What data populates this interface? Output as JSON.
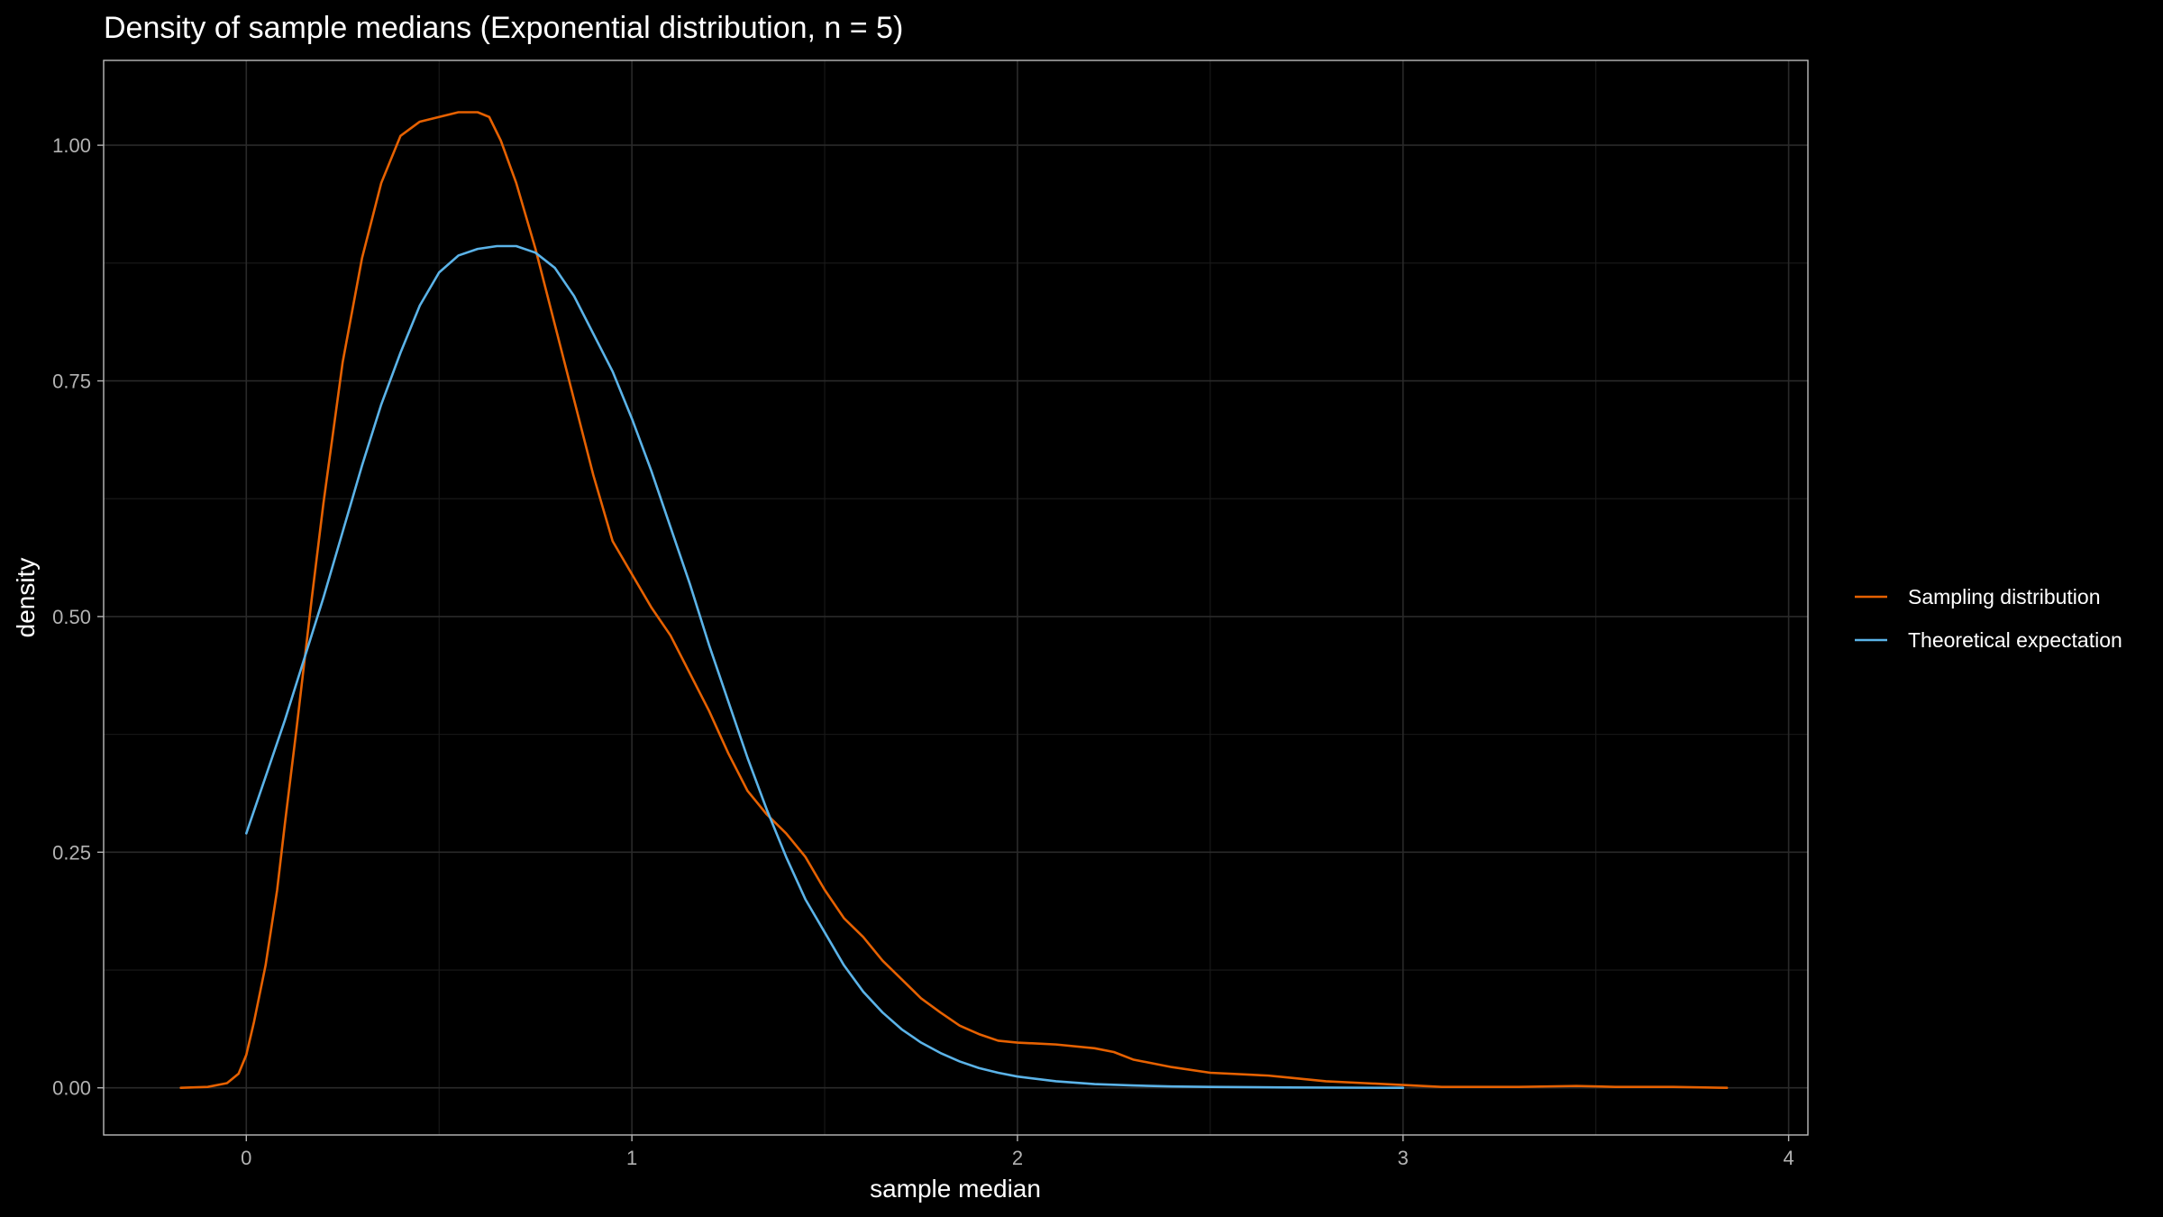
{
  "chart_data": {
    "type": "line",
    "title": "Density of sample medians (Exponential distribution, n = 5)",
    "xlabel": "sample median",
    "ylabel": "density",
    "xlim": [
      -0.37,
      4.05
    ],
    "ylim": [
      -0.05,
      1.09
    ],
    "xticks": [
      0,
      1,
      2,
      3,
      4
    ],
    "xtick_labels": [
      "0",
      "1",
      "2",
      "3",
      "4"
    ],
    "yticks": [
      0.0,
      0.25,
      0.5,
      0.75,
      1.0
    ],
    "ytick_labels": [
      "0.00",
      "0.25",
      "0.50",
      "0.75",
      "1.00"
    ],
    "x_minor": [
      0.5,
      1.5,
      2.5,
      3.5
    ],
    "y_minor": [
      0.125,
      0.375,
      0.625,
      0.875
    ],
    "grid": true,
    "legend_position": "right",
    "series": [
      {
        "name": "Sampling distribution",
        "color": "#e66101",
        "points": [
          [
            -0.17,
            0.0
          ],
          [
            -0.1,
            0.001
          ],
          [
            -0.05,
            0.005
          ],
          [
            -0.02,
            0.015
          ],
          [
            0.0,
            0.035
          ],
          [
            0.02,
            0.07
          ],
          [
            0.05,
            0.13
          ],
          [
            0.08,
            0.21
          ],
          [
            0.1,
            0.28
          ],
          [
            0.13,
            0.38
          ],
          [
            0.17,
            0.52
          ],
          [
            0.2,
            0.62
          ],
          [
            0.25,
            0.77
          ],
          [
            0.3,
            0.88
          ],
          [
            0.35,
            0.96
          ],
          [
            0.4,
            1.01
          ],
          [
            0.45,
            1.025
          ],
          [
            0.5,
            1.03
          ],
          [
            0.55,
            1.035
          ],
          [
            0.6,
            1.035
          ],
          [
            0.63,
            1.03
          ],
          [
            0.66,
            1.005
          ],
          [
            0.7,
            0.96
          ],
          [
            0.75,
            0.89
          ],
          [
            0.8,
            0.81
          ],
          [
            0.85,
            0.73
          ],
          [
            0.9,
            0.65
          ],
          [
            0.95,
            0.58
          ],
          [
            1.0,
            0.545
          ],
          [
            1.05,
            0.51
          ],
          [
            1.1,
            0.48
          ],
          [
            1.15,
            0.44
          ],
          [
            1.2,
            0.4
          ],
          [
            1.25,
            0.355
          ],
          [
            1.3,
            0.315
          ],
          [
            1.35,
            0.29
          ],
          [
            1.4,
            0.27
          ],
          [
            1.45,
            0.245
          ],
          [
            1.5,
            0.21
          ],
          [
            1.55,
            0.18
          ],
          [
            1.6,
            0.16
          ],
          [
            1.65,
            0.135
          ],
          [
            1.7,
            0.115
          ],
          [
            1.75,
            0.095
          ],
          [
            1.8,
            0.08
          ],
          [
            1.85,
            0.066
          ],
          [
            1.9,
            0.057
          ],
          [
            1.95,
            0.05
          ],
          [
            2.0,
            0.048
          ],
          [
            2.1,
            0.046
          ],
          [
            2.2,
            0.042
          ],
          [
            2.25,
            0.038
          ],
          [
            2.3,
            0.03
          ],
          [
            2.4,
            0.022
          ],
          [
            2.5,
            0.016
          ],
          [
            2.6,
            0.014
          ],
          [
            2.65,
            0.013
          ],
          [
            2.7,
            0.011
          ],
          [
            2.8,
            0.007
          ],
          [
            2.9,
            0.005
          ],
          [
            3.0,
            0.003
          ],
          [
            3.1,
            0.001
          ],
          [
            3.3,
            0.001
          ],
          [
            3.45,
            0.002
          ],
          [
            3.55,
            0.001
          ],
          [
            3.7,
            0.001
          ],
          [
            3.84,
            0.0
          ]
        ]
      },
      {
        "name": "Theoretical expectation",
        "color": "#5bb3e8",
        "points": [
          [
            0.0,
            0.27
          ],
          [
            0.05,
            0.33
          ],
          [
            0.1,
            0.39
          ],
          [
            0.15,
            0.455
          ],
          [
            0.2,
            0.52
          ],
          [
            0.25,
            0.59
          ],
          [
            0.3,
            0.66
          ],
          [
            0.35,
            0.725
          ],
          [
            0.4,
            0.78
          ],
          [
            0.45,
            0.83
          ],
          [
            0.5,
            0.865
          ],
          [
            0.55,
            0.883
          ],
          [
            0.6,
            0.89
          ],
          [
            0.65,
            0.893
          ],
          [
            0.7,
            0.893
          ],
          [
            0.75,
            0.886
          ],
          [
            0.8,
            0.87
          ],
          [
            0.85,
            0.84
          ],
          [
            0.9,
            0.8
          ],
          [
            0.95,
            0.76
          ],
          [
            1.0,
            0.71
          ],
          [
            1.05,
            0.655
          ],
          [
            1.1,
            0.595
          ],
          [
            1.15,
            0.535
          ],
          [
            1.2,
            0.47
          ],
          [
            1.25,
            0.41
          ],
          [
            1.3,
            0.35
          ],
          [
            1.35,
            0.295
          ],
          [
            1.4,
            0.245
          ],
          [
            1.45,
            0.2
          ],
          [
            1.5,
            0.165
          ],
          [
            1.55,
            0.13
          ],
          [
            1.6,
            0.102
          ],
          [
            1.65,
            0.08
          ],
          [
            1.7,
            0.062
          ],
          [
            1.75,
            0.048
          ],
          [
            1.8,
            0.037
          ],
          [
            1.85,
            0.028
          ],
          [
            1.9,
            0.021
          ],
          [
            1.95,
            0.016
          ],
          [
            2.0,
            0.012
          ],
          [
            2.1,
            0.007
          ],
          [
            2.2,
            0.004
          ],
          [
            2.3,
            0.0025
          ],
          [
            2.4,
            0.0015
          ],
          [
            2.5,
            0.001
          ],
          [
            2.7,
            0.0004
          ],
          [
            3.0,
            0.0
          ]
        ]
      }
    ]
  }
}
